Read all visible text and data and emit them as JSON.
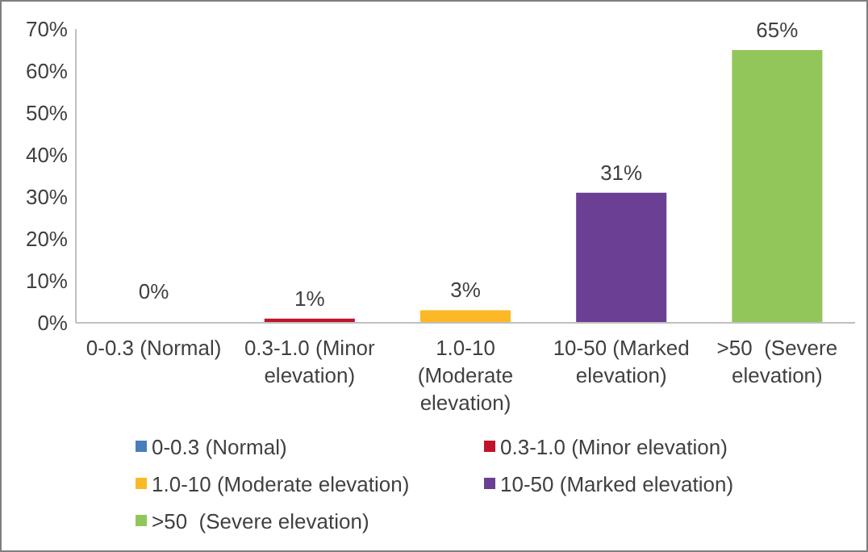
{
  "chart_data": {
    "type": "bar",
    "categories": [
      "0-0.3 (Normal)",
      "0.3-1.0 (Minor elevation)",
      "1.0-10 (Moderate elevation)",
      "10-50 (Marked elevation)",
      ">50  (Severe elevation)"
    ],
    "series": [
      {
        "name": "0-0.3 (Normal)",
        "color": "#4a7ebb",
        "values": [
          0,
          null,
          null,
          null,
          null
        ],
        "value_labels": [
          "0%",
          null,
          null,
          null,
          null
        ]
      },
      {
        "name": "0.3-1.0 (Minor elevation)",
        "color": "#c0142c",
        "values": [
          null,
          1,
          null,
          null,
          null
        ],
        "value_labels": [
          null,
          "1%",
          null,
          null,
          null
        ]
      },
      {
        "name": "1.0-10 (Moderate elevation)",
        "color": "#fdb827",
        "values": [
          null,
          null,
          3,
          null,
          null
        ],
        "value_labels": [
          null,
          null,
          "3%",
          null,
          null
        ]
      },
      {
        "name": "10-50 (Marked elevation)",
        "color": "#6b3f93",
        "values": [
          null,
          null,
          null,
          31,
          null
        ],
        "value_labels": [
          null,
          null,
          null,
          "31%",
          null
        ]
      },
      {
        "name": ">50  (Severe elevation)",
        "color": "#92c65a",
        "values": [
          null,
          null,
          null,
          null,
          65
        ],
        "value_labels": [
          null,
          null,
          null,
          null,
          "65%"
        ]
      }
    ],
    "ylim": [
      0,
      70
    ],
    "yticks": [
      {
        "value": 0,
        "label": "0%"
      },
      {
        "value": 10,
        "label": "10%"
      },
      {
        "value": 20,
        "label": "20%"
      },
      {
        "value": 30,
        "label": "30%"
      },
      {
        "value": 40,
        "label": "40%"
      },
      {
        "value": 50,
        "label": "50%"
      },
      {
        "value": 60,
        "label": "60%"
      },
      {
        "value": 70,
        "label": "70%"
      }
    ],
    "legend": "bottom"
  }
}
